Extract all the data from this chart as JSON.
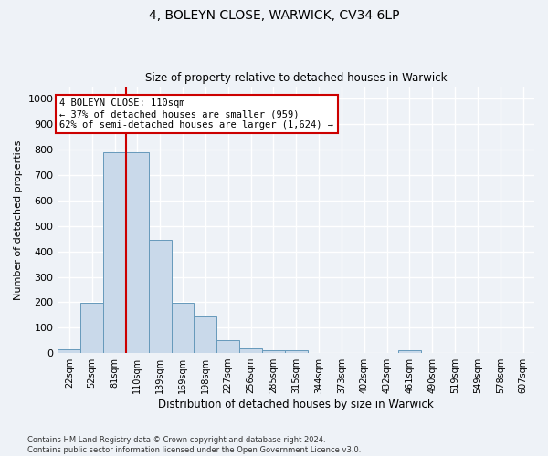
{
  "title1": "4, BOLEYN CLOSE, WARWICK, CV34 6LP",
  "title2": "Size of property relative to detached houses in Warwick",
  "xlabel": "Distribution of detached houses by size in Warwick",
  "ylabel": "Number of detached properties",
  "bar_labels": [
    "22sqm",
    "52sqm",
    "81sqm",
    "110sqm",
    "139sqm",
    "169sqm",
    "198sqm",
    "227sqm",
    "256sqm",
    "285sqm",
    "315sqm",
    "344sqm",
    "373sqm",
    "402sqm",
    "432sqm",
    "461sqm",
    "490sqm",
    "519sqm",
    "549sqm",
    "578sqm",
    "607sqm"
  ],
  "bar_values": [
    15,
    196,
    790,
    790,
    447,
    196,
    143,
    49,
    18,
    10,
    10,
    0,
    0,
    0,
    0,
    10,
    0,
    0,
    0,
    0,
    0
  ],
  "bar_color": "#c9d9ea",
  "bar_edge_color": "#6699bb",
  "vline_color": "#cc0000",
  "annotation_text": "4 BOLEYN CLOSE: 110sqm\n← 37% of detached houses are smaller (959)\n62% of semi-detached houses are larger (1,624) →",
  "annotation_box_color": "#ffffff",
  "annotation_box_edge": "#cc0000",
  "ylim": [
    0,
    1050
  ],
  "yticks": [
    0,
    100,
    200,
    300,
    400,
    500,
    600,
    700,
    800,
    900,
    1000
  ],
  "background_color": "#eef2f7",
  "grid_color": "#ffffff",
  "footer": "Contains HM Land Registry data © Crown copyright and database right 2024.\nContains public sector information licensed under the Open Government Licence v3.0."
}
